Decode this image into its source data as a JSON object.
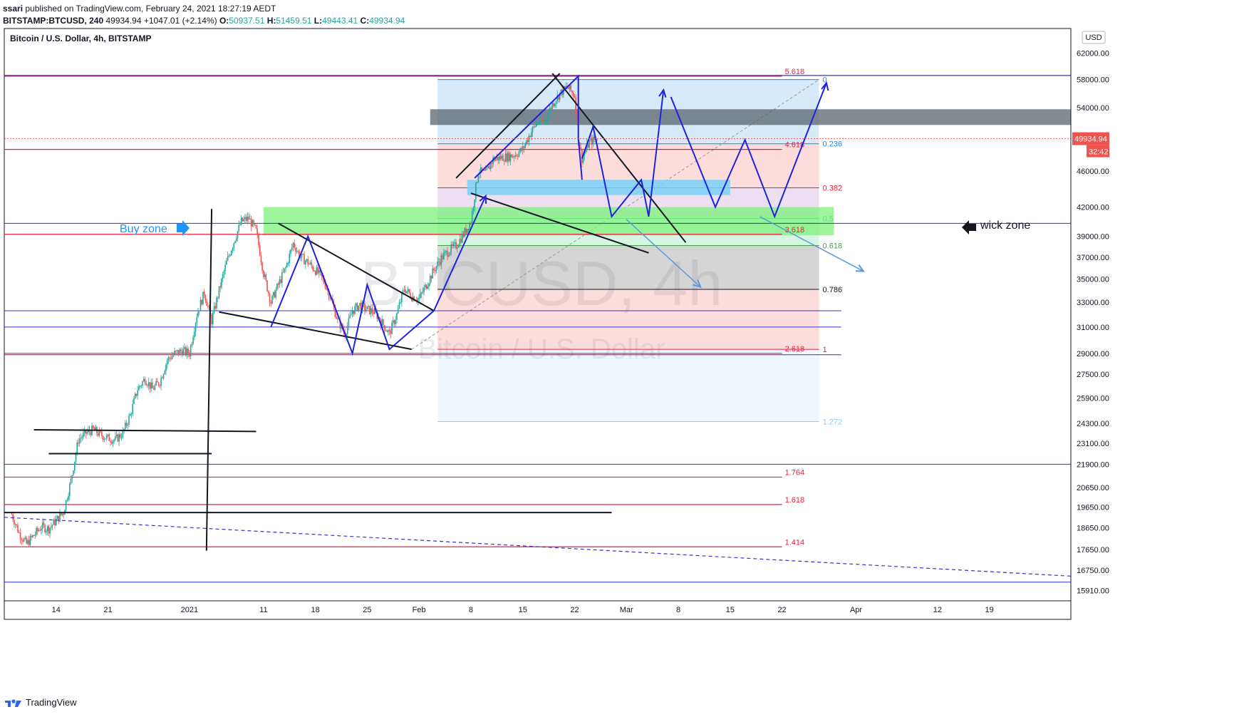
{
  "header": {
    "author": "ssari",
    "published": "published on TradingView.com, February 24, 2021 18:27:19 AEDT",
    "symbol_interval": "BITSTAMP:BTCUSD, 240",
    "last": "49934.94",
    "change": "+1047.01 (+2.14%)",
    "o_label": "O:",
    "o": "50937.51",
    "h_label": "H:",
    "h": "51459.51",
    "l_label": "L:",
    "l": "49443.41",
    "c_label": "C:",
    "c": "49934.94"
  },
  "chart_title": "Bitcoin / U.S. Dollar, 4h, BITSTAMP",
  "watermark": {
    "symbol": "BTCUSD, 4h",
    "name": "Bitcoin / U.S. Dollar"
  },
  "currency_badge": "USD",
  "price_badge": "49934.94",
  "countdown_badge": "32:42",
  "annotations": {
    "buy_zone": "Buy zone",
    "wick_zone": "wick zone"
  },
  "footer": {
    "brand": "TradingView"
  },
  "colors": {
    "up": "#26a69a",
    "down": "#ef5350",
    "pattern": "#1e22e0",
    "fib_red": "#e91e3f",
    "zone_green": "#7ef27a",
    "zone_blue": "#7ad0f8",
    "zone_gray": "#555f66"
  },
  "chart_data": {
    "type": "candlestick",
    "title": "Bitcoin / U.S. Dollar, 4h, BITSTAMP",
    "y_scale": "log",
    "ylim": [
      15500,
      66000
    ],
    "y_ticks": [
      "62000.00",
      "58000.00",
      "54000.00",
      "50000.00",
      "46000.00",
      "42000.00",
      "39000.00",
      "37000.00",
      "35000.00",
      "33000.00",
      "31000.00",
      "29000.00",
      "27500.00",
      "25900.00",
      "24300.00",
      "23100.00",
      "21900.00",
      "20650.00",
      "19650.00",
      "18650.00",
      "17650.00",
      "16750.00",
      "15910.00"
    ],
    "x_ticks": [
      {
        "label": "14",
        "day": -18
      },
      {
        "label": "21",
        "day": -11
      },
      {
        "label": "2021",
        "day": 0
      },
      {
        "label": "11",
        "day": 10
      },
      {
        "label": "18",
        "day": 17
      },
      {
        "label": "25",
        "day": 24
      },
      {
        "label": "Feb",
        "day": 31
      },
      {
        "label": "8",
        "day": 38
      },
      {
        "label": "15",
        "day": 45
      },
      {
        "label": "22",
        "day": 52
      },
      {
        "label": "Mar",
        "day": 59
      },
      {
        "label": "8",
        "day": 66
      },
      {
        "label": "15",
        "day": 73
      },
      {
        "label": "22",
        "day": 80
      },
      {
        "label": "Apr",
        "day": 90
      },
      {
        "label": "12",
        "day": 101
      },
      {
        "label": "19",
        "day": 108
      }
    ],
    "price_path": [
      [
        -24,
        19300
      ],
      [
        -23,
        18400
      ],
      [
        -22,
        17900
      ],
      [
        -21,
        18300
      ],
      [
        -20,
        18700
      ],
      [
        -19,
        18600
      ],
      [
        -18,
        19000
      ],
      [
        -17,
        19400
      ],
      [
        -16,
        21000
      ],
      [
        -15,
        23300
      ],
      [
        -14,
        23700
      ],
      [
        -13,
        23900
      ],
      [
        -12,
        23600
      ],
      [
        -11,
        23400
      ],
      [
        -10,
        23300
      ],
      [
        -9,
        23700
      ],
      [
        -8,
        24800
      ],
      [
        -7,
        26500
      ],
      [
        -6,
        27200
      ],
      [
        -5,
        26500
      ],
      [
        -4,
        27000
      ],
      [
        -3,
        28500
      ],
      [
        -2,
        29000
      ],
      [
        -1,
        29200
      ],
      [
        0,
        29000
      ],
      [
        1,
        32000
      ],
      [
        2,
        33800
      ],
      [
        3,
        31500
      ],
      [
        4,
        34000
      ],
      [
        5,
        36500
      ],
      [
        6,
        38500
      ],
      [
        7,
        40500
      ],
      [
        8,
        40800
      ],
      [
        9,
        39500
      ],
      [
        10,
        35500
      ],
      [
        11,
        33000
      ],
      [
        12,
        34500
      ],
      [
        13,
        36000
      ],
      [
        14,
        38300
      ],
      [
        15,
        37000
      ],
      [
        16,
        36500
      ],
      [
        17,
        35800
      ],
      [
        18,
        35000
      ],
      [
        19,
        33500
      ],
      [
        20,
        31500
      ],
      [
        21,
        30500
      ],
      [
        22,
        32300
      ],
      [
        23,
        32800
      ],
      [
        24,
        32400
      ],
      [
        25,
        32200
      ],
      [
        26,
        31300
      ],
      [
        27,
        30500
      ],
      [
        28,
        32000
      ],
      [
        29,
        34200
      ],
      [
        30,
        33500
      ],
      [
        31,
        33300
      ],
      [
        32,
        34500
      ],
      [
        33,
        35800
      ],
      [
        34,
        36900
      ],
      [
        35,
        37600
      ],
      [
        36,
        38100
      ],
      [
        37,
        39200
      ],
      [
        38,
        40500
      ],
      [
        39,
        46000
      ],
      [
        40,
        45700
      ],
      [
        41,
        47400
      ],
      [
        42,
        47600
      ],
      [
        43,
        47700
      ],
      [
        44,
        48000
      ],
      [
        45,
        48600
      ],
      [
        46,
        50600
      ],
      [
        47,
        52100
      ],
      [
        48,
        52200
      ],
      [
        49,
        54500
      ],
      [
        50,
        56000
      ],
      [
        51,
        56900
      ],
      [
        52,
        55700
      ],
      [
        52.5,
        50000
      ],
      [
        53,
        47500
      ],
      [
        54,
        49500
      ],
      [
        55,
        49934
      ]
    ],
    "horizontal_levels": [
      {
        "label": "5.618",
        "price": 58500,
        "color": "#e91e3f"
      },
      {
        "label": "4.618",
        "price": 48600,
        "color": "#e91e3f"
      },
      {
        "label": "3.618",
        "price": 39200,
        "color": "#e91e3f"
      },
      {
        "label": "2.618",
        "price": 29000,
        "color": "#e91e3f"
      },
      {
        "label": "1.764",
        "price": 21200,
        "color": "#e91e3f"
      },
      {
        "label": "1.618",
        "price": 19780,
        "color": "#e91e3f"
      },
      {
        "label": "1.414",
        "price": 17770,
        "color": "#e91e3f"
      }
    ],
    "fib_retracement": [
      {
        "label": "0",
        "price": 58000
      },
      {
        "label": "0.236",
        "price": 49300
      },
      {
        "label": "0.382",
        "price": 44100
      },
      {
        "label": "0.5",
        "price": 40800
      },
      {
        "label": "0.618",
        "price": 38100
      },
      {
        "label": "0.786",
        "price": 34100
      },
      {
        "label": "1",
        "price": 29300
      },
      {
        "label": "1.272",
        "price": 24400
      }
    ],
    "projection_path": [
      [
        53,
        47500
      ],
      [
        54.5,
        51500
      ],
      [
        57,
        41000
      ],
      [
        61,
        45000
      ],
      [
        62,
        41000
      ],
      [
        64,
        56500
      ]
    ],
    "future_path": [
      [
        65,
        55500
      ],
      [
        71,
        42000
      ],
      [
        75,
        49800
      ],
      [
        79,
        41000
      ],
      [
        86,
        57500
      ]
    ]
  }
}
